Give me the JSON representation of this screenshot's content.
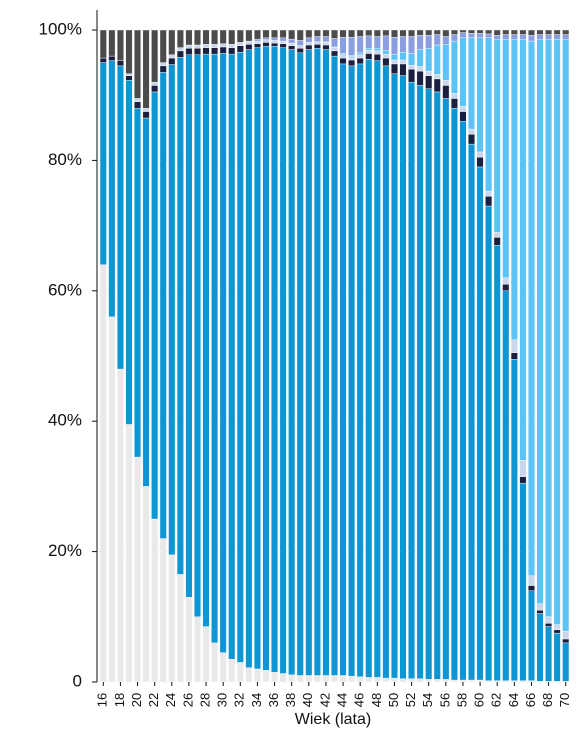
{
  "chart_data": {
    "type": "stacked_bar",
    "x_label": "Wiek (lata)",
    "categories": [
      "16",
      null,
      "18",
      null,
      "20",
      null,
      "22",
      null,
      "24",
      null,
      "26",
      null,
      "28",
      null,
      "30",
      null,
      "32",
      null,
      "34",
      null,
      "36",
      null,
      "38",
      null,
      "40",
      null,
      "42",
      null,
      "44",
      null,
      "46",
      null,
      "48",
      null,
      "50",
      null,
      "52",
      null,
      "54",
      null,
      "56",
      null,
      "58",
      null,
      "60",
      null,
      "62",
      null,
      "64",
      null,
      "66",
      null,
      "68",
      null,
      "70"
    ],
    "ylim": [
      0,
      100
    ],
    "yticks": [
      0,
      {
        "value": 20,
        "label": "20%"
      },
      {
        "value": 40,
        "label": "40%"
      },
      {
        "value": 60,
        "label": "60%"
      },
      {
        "value": 80,
        "label": "80%"
      },
      {
        "value": 100,
        "label": "100%"
      }
    ],
    "grid": true,
    "series": [
      {
        "color": "#e9e9e9",
        "values": [
          64,
          56,
          48,
          39.5,
          34.5,
          30,
          25,
          22,
          19.5,
          16.5,
          13,
          10,
          8.5,
          6,
          4.5,
          3.5,
          3,
          2.2,
          2,
          1.8,
          1.5,
          1.3,
          1.1,
          1,
          1,
          1,
          1,
          1,
          1,
          0.9,
          0.8,
          0.7,
          0.7,
          0.6,
          0.6,
          0.5,
          0.5,
          0.5,
          0.4,
          0.4,
          0.4,
          0.3,
          0.3,
          0.3,
          0.3,
          0.2,
          0.2,
          0.2,
          0.2,
          0.2,
          0.2,
          0.1,
          0.1,
          0.1,
          0.1
        ]
      },
      {
        "color": "#0e96d4",
        "values": [
          31,
          39.3,
          46.5,
          52.8,
          53.5,
          56.5,
          65.5,
          71.5,
          75.2,
          79.3,
          83.2,
          86.2,
          87.8,
          90.3,
          91.9,
          92.8,
          93.6,
          94.8,
          95.3,
          95.7,
          96,
          96,
          95.9,
          95.5,
          96,
          96.2,
          96,
          95,
          93.8,
          93.6,
          94,
          94.8,
          94.6,
          93.9,
          92.7,
          92.5,
          91.5,
          91,
          90.6,
          90.1,
          89.1,
          87.7,
          85.7,
          82.2,
          78.7,
          72.8,
          66.8,
          59.8,
          49.3,
          30.3,
          13.8,
          10.4,
          8.4,
          7.4,
          5.9
        ]
      },
      {
        "color": "#1b2040",
        "values": [
          0.7,
          0.7,
          0.8,
          0.7,
          1,
          1,
          1,
          1,
          1,
          1,
          1,
          1,
          1,
          1,
          1,
          1,
          1,
          0.8,
          0.6,
          0.6,
          0.5,
          0.6,
          0.6,
          0.7,
          0.7,
          0.6,
          0.7,
          0.8,
          0.9,
          0.9,
          0.9,
          0.9,
          1,
          1.2,
          1.5,
          1.8,
          2,
          2.2,
          2,
          2,
          2,
          1.5,
          1.5,
          1.5,
          1.5,
          1.5,
          1.2,
          1,
          1,
          1,
          0.8,
          0.5,
          0.5,
          0.5,
          0.6
        ]
      },
      {
        "color": "#c9d6ec",
        "values": [
          0,
          0,
          0,
          0.3,
          0.5,
          0.5,
          0.5,
          0.5,
          0.5,
          0.5,
          0.5,
          0.5,
          0.5,
          0.5,
          0.5,
          0.5,
          0.5,
          0.5,
          0.4,
          0.4,
          0.4,
          0.4,
          0.4,
          0.4,
          0.4,
          0.4,
          0.4,
          0.5,
          0.5,
          0.5,
          0.5,
          0.5,
          0.5,
          0.6,
          0.6,
          0.6,
          0.6,
          0.7,
          0.7,
          0.7,
          0.8,
          0.8,
          0.8,
          0.8,
          0.8,
          0.8,
          0.8,
          1,
          2,
          2.5,
          1.5,
          1,
          1,
          0.8,
          1.2
        ]
      },
      {
        "color": "#5cc3f6",
        "values": [
          0,
          0,
          0,
          0,
          0,
          0,
          0,
          0,
          0,
          0,
          0,
          0,
          0,
          0,
          0,
          0,
          0,
          0,
          0,
          0,
          0,
          0,
          0,
          0,
          0,
          0,
          0.1,
          0.1,
          0.2,
          0.2,
          0.3,
          0.3,
          0.4,
          0.6,
          0.9,
          1.2,
          1.8,
          2.6,
          3.5,
          4.5,
          5.5,
          8,
          10.5,
          14,
          17.5,
          23.5,
          29.5,
          36.5,
          46,
          64.5,
          82,
          86.5,
          88.5,
          89.8,
          90.7
        ]
      },
      {
        "color": "#8b9fe0",
        "values": [
          0,
          0,
          0,
          0,
          0,
          0,
          0,
          0,
          0,
          0,
          0,
          0,
          0,
          0,
          0,
          0,
          0,
          0,
          0.3,
          0.3,
          0.4,
          0.5,
          0.6,
          0.8,
          0.7,
          0.8,
          0.8,
          1.3,
          2.5,
          2.8,
          2.5,
          1.9,
          1.8,
          2.2,
          2.6,
          2.4,
          2.6,
          2.2,
          2,
          1.6,
          1.2,
          1,
          0.8,
          0.7,
          0.7,
          0.6,
          0.7,
          0.8,
          0.8,
          0.8,
          0.9,
          0.8,
          0.8,
          0.7,
          0.8
        ]
      },
      {
        "color": "#4b4b4b",
        "values": [
          4.3,
          4,
          4.7,
          6.7,
          10.5,
          12,
          8,
          5,
          3.8,
          2.7,
          2.3,
          2.3,
          2.2,
          2.2,
          2.1,
          2.2,
          1.9,
          1.7,
          1.4,
          1.2,
          1.2,
          1.2,
          1.4,
          1.6,
          1.2,
          1,
          1,
          1.3,
          1.1,
          1.1,
          1,
          0.9,
          1,
          0.9,
          1.1,
          1,
          1,
          0.8,
          0.8,
          0.7,
          1,
          0.7,
          0.4,
          0.5,
          0.5,
          0.6,
          0.8,
          0.7,
          0.7,
          0.7,
          0.8,
          0.7,
          0.7,
          0.7,
          0.7
        ]
      }
    ]
  }
}
